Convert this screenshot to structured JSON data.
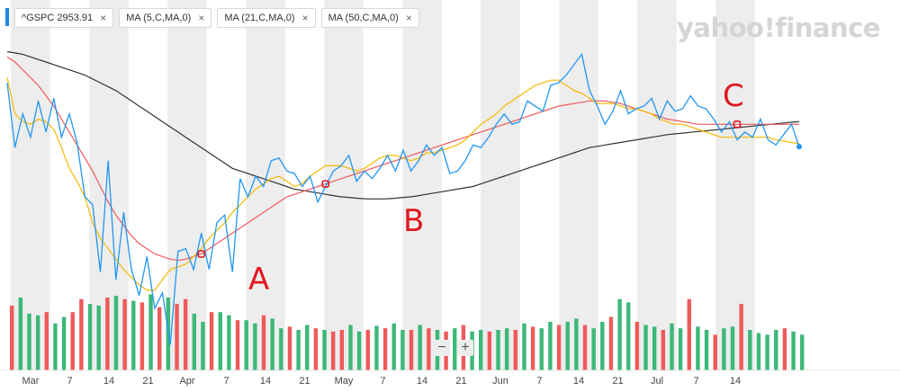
{
  "legend": {
    "ticker": "^GSPC",
    "price": "2953.91",
    "ma5": "MA (5,C,MA,0)",
    "ma21": "MA (21,C,MA,0)",
    "ma50": "MA (50,C,MA,0)",
    "close_icon": "×"
  },
  "brand": "yahoo!finance",
  "zoom": {
    "minus": "−",
    "plus": "+"
  },
  "annotations": [
    {
      "label": "A",
      "color": "#e0161e"
    },
    {
      "label": "B",
      "color": "#e0161e"
    },
    {
      "label": "C",
      "color": "#e0161e"
    }
  ],
  "colors": {
    "price": "#2196f3",
    "ma5": "#f5b800",
    "ma21": "#f05a5a",
    "ma50": "#333333",
    "volume_up": "#3cb878",
    "volume_down": "#ef5a5a",
    "stripe": "#ededed"
  },
  "chart_data": {
    "type": "line",
    "x_tick_labels": [
      "Mar",
      "7",
      "14",
      "21",
      "Apr",
      "7",
      "14",
      "21",
      "May",
      "7",
      "14",
      "21",
      "Jun",
      "7",
      "14",
      "21",
      "Jul",
      "7",
      "14"
    ],
    "series": [
      {
        "name": "^GSPC",
        "values": [
          3200,
          2950,
          3080,
          2990,
          3130,
          3010,
          3140,
          2990,
          3080,
          2970,
          2760,
          2730,
          2470,
          2900,
          2440,
          2700,
          2480,
          2380,
          2530,
          2330,
          2390,
          2190,
          2550,
          2560,
          2480,
          2620,
          2480,
          2660,
          2690,
          2470,
          2830,
          2760,
          2840,
          2800,
          2900,
          2910,
          2860,
          2850,
          2800,
          2840,
          2740,
          2800,
          2860,
          2880,
          2920,
          2820,
          2860,
          2830,
          2870,
          2920,
          2860,
          2940,
          2860,
          2900,
          2960,
          2920,
          2950,
          2850,
          2860,
          2900,
          2960,
          2950,
          2990,
          3040,
          3080,
          3040,
          3050,
          3130,
          3110,
          3090,
          3190,
          3200,
          3230,
          3270,
          3310,
          3170,
          3110,
          3040,
          3090,
          3170,
          3080,
          3100,
          3110,
          3140,
          3060,
          3130,
          3090,
          3100,
          3150,
          3110,
          3100,
          3060,
          3010,
          3050,
          2980,
          3010,
          2990,
          3060,
          2980,
          2960,
          3000,
          3040,
          2953.91
        ]
      },
      {
        "name": "MA (5,C,MA,0)",
        "values": [
          3220,
          3080,
          3050,
          3040,
          3060,
          3050,
          3020,
          2950,
          2870,
          2820,
          2760,
          2660,
          2600,
          2560,
          2520,
          2480,
          2450,
          2420,
          2400,
          2400,
          2440,
          2480,
          2490,
          2500,
          2530,
          2560,
          2600,
          2630,
          2660,
          2700,
          2730,
          2760,
          2790,
          2810,
          2830,
          2840,
          2820,
          2800,
          2810,
          2840,
          2860,
          2880,
          2880,
          2880,
          2870,
          2860,
          2870,
          2890,
          2910,
          2920,
          2920,
          2910,
          2900,
          2910,
          2930,
          2930,
          2940,
          2950,
          2960,
          2980,
          3010,
          3040,
          3060,
          3080,
          3110,
          3130,
          3150,
          3170,
          3190,
          3200,
          3210,
          3210,
          3190,
          3170,
          3160,
          3140,
          3120,
          3120,
          3120,
          3110,
          3100,
          3100,
          3090,
          3080,
          3060,
          3050,
          3040,
          3040,
          3030,
          3020,
          3010,
          3000,
          2990,
          2990,
          2990,
          2990,
          2990,
          2990,
          2990,
          2980,
          2975,
          2970,
          2965
        ]
      },
      {
        "name": "MA (21,C,MA,0)",
        "values": [
          3300,
          3280,
          3250,
          3220,
          3190,
          3150,
          3110,
          3060,
          3010,
          2960,
          2910,
          2860,
          2800,
          2740,
          2690,
          2650,
          2610,
          2580,
          2560,
          2540,
          2530,
          2520,
          2515,
          2520,
          2530,
          2540,
          2560,
          2580,
          2600,
          2620,
          2640,
          2660,
          2680,
          2700,
          2720,
          2740,
          2760,
          2770,
          2780,
          2790,
          2800,
          2810,
          2820,
          2830,
          2840,
          2850,
          2860,
          2870,
          2880,
          2890,
          2900,
          2910,
          2920,
          2930,
          2940,
          2950,
          2960,
          2970,
          2980,
          2990,
          3000,
          3010,
          3020,
          3030,
          3040,
          3050,
          3060,
          3070,
          3080,
          3090,
          3100,
          3110,
          3115,
          3120,
          3125,
          3130,
          3130,
          3130,
          3125,
          3120,
          3110,
          3100,
          3090,
          3080,
          3070,
          3060,
          3055,
          3050,
          3045,
          3040,
          3040,
          3040,
          3040,
          3040,
          3040,
          3040,
          3040,
          3040,
          3040,
          3040,
          3040,
          3040,
          3040
        ]
      },
      {
        "name": "MA (50,C,MA,0)",
        "values": [
          3320,
          3315,
          3310,
          3300,
          3290,
          3280,
          3270,
          3260,
          3250,
          3240,
          3230,
          3215,
          3200,
          3185,
          3170,
          3150,
          3130,
          3110,
          3090,
          3070,
          3050,
          3030,
          3010,
          2990,
          2970,
          2950,
          2930,
          2910,
          2890,
          2870,
          2860,
          2850,
          2840,
          2830,
          2820,
          2810,
          2800,
          2790,
          2785,
          2780,
          2775,
          2770,
          2765,
          2760,
          2758,
          2755,
          2753,
          2752,
          2752,
          2753,
          2755,
          2758,
          2760,
          2765,
          2770,
          2775,
          2780,
          2785,
          2790,
          2795,
          2800,
          2810,
          2820,
          2830,
          2840,
          2850,
          2860,
          2870,
          2880,
          2890,
          2900,
          2910,
          2920,
          2930,
          2940,
          2950,
          2955,
          2960,
          2965,
          2970,
          2975,
          2980,
          2985,
          2990,
          2995,
          3000,
          3003,
          3006,
          3009,
          3012,
          3015,
          3018,
          3021,
          3024,
          3027,
          3030,
          3033,
          3036,
          3039,
          3042,
          3045,
          3048,
          3050
        ]
      }
    ],
    "volume": [
      {
        "v": 0.8,
        "up": false
      },
      {
        "v": 0.9,
        "up": true
      },
      {
        "v": 0.7,
        "up": true
      },
      {
        "v": 0.68,
        "up": true
      },
      {
        "v": 0.72,
        "up": false
      },
      {
        "v": 0.58,
        "up": true
      },
      {
        "v": 0.66,
        "up": true
      },
      {
        "v": 0.72,
        "up": false
      },
      {
        "v": 0.88,
        "up": false
      },
      {
        "v": 0.82,
        "up": true
      },
      {
        "v": 0.8,
        "up": true
      },
      {
        "v": 0.9,
        "up": false
      },
      {
        "v": 0.92,
        "up": true
      },
      {
        "v": 0.88,
        "up": false
      },
      {
        "v": 0.86,
        "up": true
      },
      {
        "v": 0.84,
        "up": false
      },
      {
        "v": 0.94,
        "up": true
      },
      {
        "v": 0.78,
        "up": false
      },
      {
        "v": 0.9,
        "up": true
      },
      {
        "v": 0.82,
        "up": false
      },
      {
        "v": 0.88,
        "up": false
      },
      {
        "v": 0.7,
        "up": true
      },
      {
        "v": 0.6,
        "up": true
      },
      {
        "v": 0.72,
        "up": false
      },
      {
        "v": 0.72,
        "up": true
      },
      {
        "v": 0.68,
        "up": true
      },
      {
        "v": 0.62,
        "up": false
      },
      {
        "v": 0.62,
        "up": true
      },
      {
        "v": 0.58,
        "up": true
      },
      {
        "v": 0.68,
        "up": false
      },
      {
        "v": 0.64,
        "up": true
      },
      {
        "v": 0.52,
        "up": true
      },
      {
        "v": 0.54,
        "up": false
      },
      {
        "v": 0.5,
        "up": true
      },
      {
        "v": 0.56,
        "up": true
      },
      {
        "v": 0.52,
        "up": false
      },
      {
        "v": 0.5,
        "up": true
      },
      {
        "v": 0.48,
        "up": false
      },
      {
        "v": 0.5,
        "up": false
      },
      {
        "v": 0.56,
        "up": true
      },
      {
        "v": 0.48,
        "up": true
      },
      {
        "v": 0.5,
        "up": false
      },
      {
        "v": 0.55,
        "up": true
      },
      {
        "v": 0.52,
        "up": false
      },
      {
        "v": 0.58,
        "up": true
      },
      {
        "v": 0.5,
        "up": true
      },
      {
        "v": 0.5,
        "up": false
      },
      {
        "v": 0.56,
        "up": true
      },
      {
        "v": 0.52,
        "up": false
      },
      {
        "v": 0.5,
        "up": true
      },
      {
        "v": 0.48,
        "up": false
      },
      {
        "v": 0.52,
        "up": true
      },
      {
        "v": 0.56,
        "up": false
      },
      {
        "v": 0.48,
        "up": true
      },
      {
        "v": 0.5,
        "up": true
      },
      {
        "v": 0.48,
        "up": false
      },
      {
        "v": 0.5,
        "up": true
      },
      {
        "v": 0.52,
        "up": true
      },
      {
        "v": 0.5,
        "up": false
      },
      {
        "v": 0.58,
        "up": true
      },
      {
        "v": 0.54,
        "up": false
      },
      {
        "v": 0.52,
        "up": true
      },
      {
        "v": 0.6,
        "up": true
      },
      {
        "v": 0.56,
        "up": false
      },
      {
        "v": 0.6,
        "up": true
      },
      {
        "v": 0.64,
        "up": true
      },
      {
        "v": 0.56,
        "up": false
      },
      {
        "v": 0.52,
        "up": true
      },
      {
        "v": 0.6,
        "up": true
      },
      {
        "v": 0.66,
        "up": false
      },
      {
        "v": 0.88,
        "up": true
      },
      {
        "v": 0.84,
        "up": true
      },
      {
        "v": 0.6,
        "up": false
      },
      {
        "v": 0.56,
        "up": true
      },
      {
        "v": 0.54,
        "up": true
      },
      {
        "v": 0.5,
        "up": false
      },
      {
        "v": 0.58,
        "up": true
      },
      {
        "v": 0.52,
        "up": true
      },
      {
        "v": 0.88,
        "up": false
      },
      {
        "v": 0.54,
        "up": true
      },
      {
        "v": 0.5,
        "up": true
      },
      {
        "v": 0.44,
        "up": false
      },
      {
        "v": 0.52,
        "up": true
      },
      {
        "v": 0.54,
        "up": true
      },
      {
        "v": 0.82,
        "up": false
      },
      {
        "v": 0.5,
        "up": true
      },
      {
        "v": 0.46,
        "up": true
      },
      {
        "v": 0.44,
        "up": true
      },
      {
        "v": 0.5,
        "up": true
      },
      {
        "v": 0.52,
        "up": false
      },
      {
        "v": 0.48,
        "up": true
      },
      {
        "v": 0.44,
        "up": true
      }
    ],
    "annotation_points": [
      {
        "label": "A",
        "index": 25
      },
      {
        "label": "B",
        "index": 41
      },
      {
        "label": "C",
        "index": 94
      }
    ],
    "ylim": [
      2150,
      3450
    ],
    "grid": "vertical stripes",
    "legend_placement": "top-left"
  }
}
